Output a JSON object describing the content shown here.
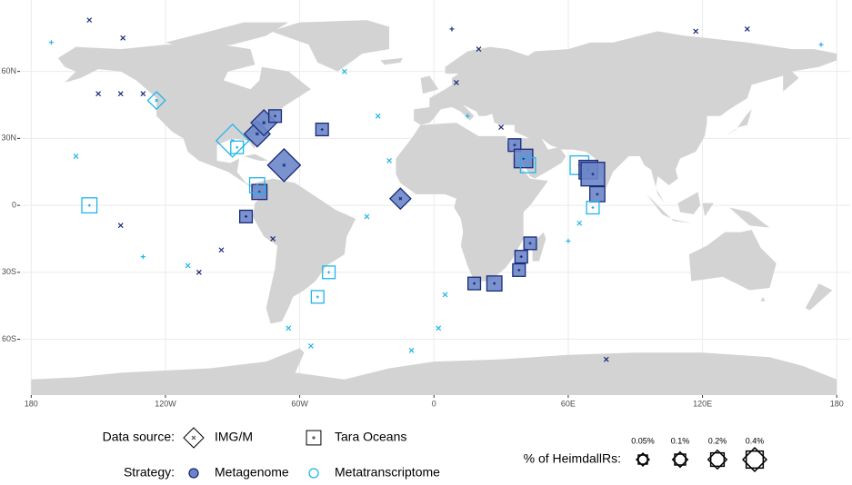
{
  "chart_data": {
    "type": "map",
    "xlim": [
      -185,
      186
    ],
    "ylim": [
      -85,
      92
    ],
    "xticks": [
      {
        "value": -180,
        "label": "180"
      },
      {
        "value": -120,
        "label": "120W"
      },
      {
        "value": -60,
        "label": "60W"
      },
      0,
      {
        "value": 60,
        "label": "60E"
      },
      {
        "value": 120,
        "label": "120E"
      },
      {
        "value": 180,
        "label": "180"
      }
    ],
    "yticks": [
      {
        "value": -60,
        "label": "60S"
      },
      {
        "value": -30,
        "label": "30S"
      },
      0,
      {
        "value": 30,
        "label": "30N"
      },
      {
        "value": 60,
        "label": "60N"
      }
    ],
    "grid": true,
    "source_title": "Data source:",
    "sources": [
      {
        "name": "IMG/M",
        "shape": "diamond"
      },
      {
        "name": "Tara Oceans",
        "shape": "square"
      }
    ],
    "strategy_title": "Strategy:",
    "strategies": [
      {
        "name": "Metagenome",
        "color": "#1a2a7a",
        "fill": "#6b86c8"
      },
      {
        "name": "Metatranscriptome",
        "color": "#1fb5ea",
        "fill": "none"
      }
    ],
    "size_title": "% of HeimdallRs:",
    "size_legend": [
      {
        "value": 0.05,
        "label": "0.05%"
      },
      {
        "value": 0.1,
        "label": "0.1%"
      },
      {
        "value": 0.2,
        "label": "0.2%"
      },
      {
        "value": 0.4,
        "label": "0.4%"
      }
    ],
    "points": [
      {
        "x": -90,
        "y": 29,
        "source": 0,
        "strategy": 1,
        "size": 0.4
      },
      {
        "x": -79,
        "y": 32,
        "source": 0,
        "strategy": 0,
        "size": 0.2
      },
      {
        "x": -76,
        "y": 37,
        "source": 0,
        "strategy": 0,
        "size": 0.2
      },
      {
        "x": -67,
        "y": 18,
        "source": 0,
        "strategy": 0,
        "size": 0.4
      },
      {
        "x": -15,
        "y": 3,
        "source": 0,
        "strategy": 0,
        "size": 0.1
      },
      {
        "x": -154,
        "y": 0,
        "source": 1,
        "strategy": 1,
        "size": 0.1
      },
      {
        "x": -78,
        "y": 6,
        "source": 1,
        "strategy": 0,
        "size": 0.1
      },
      {
        "x": -79,
        "y": 9,
        "source": 1,
        "strategy": 1,
        "size": 0.1
      },
      {
        "x": -88,
        "y": 26,
        "source": 1,
        "strategy": 1,
        "size": 0.05
      },
      {
        "x": -50,
        "y": 34,
        "source": 1,
        "strategy": 0,
        "size": 0.05
      },
      {
        "x": -84,
        "y": -5,
        "source": 1,
        "strategy": 0,
        "size": 0.05
      },
      {
        "x": -71,
        "y": 40,
        "source": 1,
        "strategy": 0,
        "size": 0.05
      },
      {
        "x": 36,
        "y": 27,
        "source": 1,
        "strategy": 0,
        "size": 0.05
      },
      {
        "x": 40,
        "y": 21,
        "source": 1,
        "strategy": 0,
        "size": 0.2
      },
      {
        "x": 42,
        "y": 18,
        "source": 1,
        "strategy": 1,
        "size": 0.1
      },
      {
        "x": 65,
        "y": 18,
        "source": 1,
        "strategy": 1,
        "size": 0.2
      },
      {
        "x": 69,
        "y": 16,
        "source": 1,
        "strategy": 0,
        "size": 0.2
      },
      {
        "x": 71,
        "y": 14,
        "source": 1,
        "strategy": 0,
        "size": 0.4
      },
      {
        "x": 73,
        "y": 5,
        "source": 1,
        "strategy": 0,
        "size": 0.1
      },
      {
        "x": 71,
        "y": -1,
        "source": 1,
        "strategy": 1,
        "size": 0.05
      },
      {
        "x": 43,
        "y": -17,
        "source": 1,
        "strategy": 0,
        "size": 0.05
      },
      {
        "x": 39,
        "y": -23,
        "source": 1,
        "strategy": 0,
        "size": 0.05
      },
      {
        "x": 38,
        "y": -29,
        "source": 1,
        "strategy": 0,
        "size": 0.05
      },
      {
        "x": 27,
        "y": -35,
        "source": 1,
        "strategy": 0,
        "size": 0.1
      },
      {
        "x": 18,
        "y": -35,
        "source": 1,
        "strategy": 0,
        "size": 0.05
      },
      {
        "x": -47,
        "y": -30,
        "source": 1,
        "strategy": 1,
        "size": 0.05
      },
      {
        "x": -52,
        "y": -41,
        "source": 1,
        "strategy": 1,
        "size": 0.05
      },
      {
        "x": -124,
        "y": 47,
        "source": 0,
        "strategy": 1,
        "size": 0.05
      },
      {
        "x": -150,
        "y": 50,
        "source": 0,
        "strategy": 0,
        "size": null
      },
      {
        "x": -140,
        "y": 50,
        "source": 0,
        "strategy": 0,
        "size": null
      },
      {
        "x": -130,
        "y": 50,
        "source": 0,
        "strategy": 0,
        "size": null
      },
      {
        "x": -154,
        "y": 83,
        "source": 0,
        "strategy": 0,
        "size": null
      },
      {
        "x": -139,
        "y": 75,
        "source": 0,
        "strategy": 0,
        "size": null
      },
      {
        "x": -171,
        "y": 73,
        "source": 1,
        "strategy": 1,
        "size": null
      },
      {
        "x": -160,
        "y": 22,
        "source": 0,
        "strategy": 1,
        "size": null
      },
      {
        "x": -140,
        "y": -9,
        "source": 0,
        "strategy": 0,
        "size": null
      },
      {
        "x": -130,
        "y": -23,
        "source": 1,
        "strategy": 1,
        "size": null
      },
      {
        "x": -110,
        "y": -27,
        "source": 0,
        "strategy": 1,
        "size": null
      },
      {
        "x": -105,
        "y": -30,
        "source": 0,
        "strategy": 0,
        "size": null
      },
      {
        "x": -95,
        "y": -20,
        "source": 0,
        "strategy": 0,
        "size": null
      },
      {
        "x": -72,
        "y": -15,
        "source": 0,
        "strategy": 0,
        "size": null
      },
      {
        "x": -65,
        "y": -55,
        "source": 0,
        "strategy": 1,
        "size": null
      },
      {
        "x": -55,
        "y": -63,
        "source": 0,
        "strategy": 1,
        "size": null
      },
      {
        "x": -40,
        "y": 60,
        "source": 0,
        "strategy": 1,
        "size": null
      },
      {
        "x": -25,
        "y": 40,
        "source": 0,
        "strategy": 1,
        "size": null
      },
      {
        "x": -20,
        "y": 20,
        "source": 0,
        "strategy": 1,
        "size": null
      },
      {
        "x": -30,
        "y": -5,
        "source": 0,
        "strategy": 1,
        "size": null
      },
      {
        "x": 5,
        "y": -40,
        "source": 0,
        "strategy": 1,
        "size": null
      },
      {
        "x": 2,
        "y": -55,
        "source": 0,
        "strategy": 1,
        "size": null
      },
      {
        "x": -10,
        "y": -65,
        "source": 0,
        "strategy": 1,
        "size": null
      },
      {
        "x": 8,
        "y": 79,
        "source": 1,
        "strategy": 0,
        "size": null
      },
      {
        "x": 20,
        "y": 70,
        "source": 0,
        "strategy": 0,
        "size": null
      },
      {
        "x": 10,
        "y": 55,
        "source": 0,
        "strategy": 0,
        "size": null
      },
      {
        "x": 15,
        "y": 40,
        "source": 1,
        "strategy": 1,
        "size": null
      },
      {
        "x": 30,
        "y": 35,
        "source": 0,
        "strategy": 0,
        "size": null
      },
      {
        "x": 60,
        "y": -16,
        "source": 1,
        "strategy": 1,
        "size": null
      },
      {
        "x": 65,
        "y": -8,
        "source": 0,
        "strategy": 1,
        "size": null
      },
      {
        "x": 77,
        "y": -69,
        "source": 0,
        "strategy": 0,
        "size": null
      },
      {
        "x": 117,
        "y": 78,
        "source": 0,
        "strategy": 0,
        "size": null
      },
      {
        "x": 173,
        "y": 72,
        "source": 1,
        "strategy": 1,
        "size": null
      },
      {
        "x": 140,
        "y": 79,
        "source": 0,
        "strategy": 0,
        "size": null
      }
    ]
  }
}
